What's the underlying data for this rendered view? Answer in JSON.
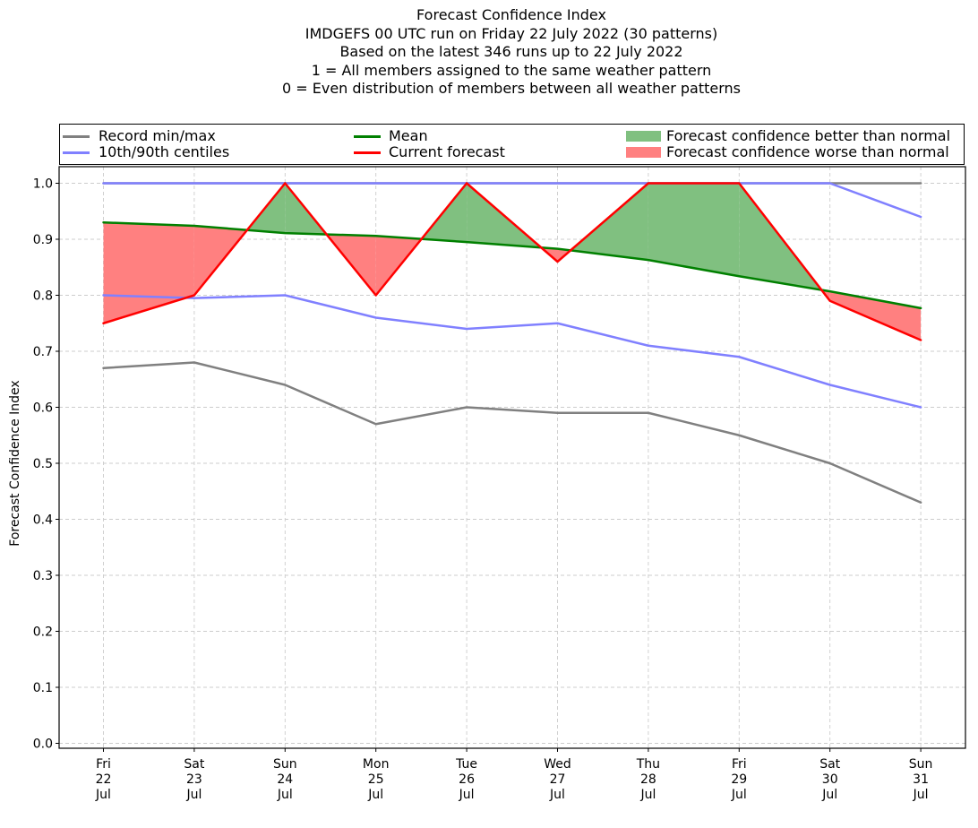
{
  "title_lines": [
    "Forecast Confidence Index",
    "IMDGEFS 00 UTC run on Friday 22 July 2022 (30 patterns)",
    "Based on the latest 346 runs up to 22 July 2022",
    "1 = All members assigned to the same weather pattern",
    "0 = Even distribution of members between all weather patterns"
  ],
  "legend": {
    "record": "Record min/max",
    "centiles": "10th/90th centiles",
    "mean": "Mean",
    "current": "Current forecast",
    "better": "Forecast confidence better than normal",
    "worse": "Forecast confidence worse than normal"
  },
  "colors": {
    "record": "#808080",
    "centiles": "#8080ff",
    "mean": "#008000",
    "current": "#ff0000",
    "better": "#80c080",
    "worse": "#ff8080"
  },
  "chart_data": {
    "type": "line",
    "ylabel": "Forecast Confidence Index",
    "ylim": [
      0.0,
      1.0
    ],
    "yticks": [
      "0.0",
      "0.1",
      "0.2",
      "0.3",
      "0.4",
      "0.5",
      "0.6",
      "0.7",
      "0.8",
      "0.9",
      "1.0"
    ],
    "grid": true,
    "legend_position": "top",
    "x": [
      [
        "Fri",
        "22",
        "Jul"
      ],
      [
        "Sat",
        "23",
        "Jul"
      ],
      [
        "Sun",
        "24",
        "Jul"
      ],
      [
        "Mon",
        "25",
        "Jul"
      ],
      [
        "Tue",
        "26",
        "Jul"
      ],
      [
        "Wed",
        "27",
        "Jul"
      ],
      [
        "Thu",
        "28",
        "Jul"
      ],
      [
        "Fri",
        "29",
        "Jul"
      ],
      [
        "Sat",
        "30",
        "Jul"
      ],
      [
        "Sun",
        "31",
        "Jul"
      ]
    ],
    "series": [
      {
        "name": "Record min/max",
        "role": "record_max",
        "values": [
          1.0,
          1.0,
          1.0,
          1.0,
          1.0,
          1.0,
          1.0,
          1.0,
          1.0,
          1.0
        ]
      },
      {
        "name": "Record min/max",
        "role": "record_min",
        "values": [
          0.67,
          0.68,
          0.64,
          0.57,
          0.6,
          0.59,
          0.59,
          0.55,
          0.5,
          0.43
        ]
      },
      {
        "name": "10th/90th centiles",
        "role": "p90",
        "values": [
          1.0,
          1.0,
          1.0,
          1.0,
          1.0,
          1.0,
          1.0,
          1.0,
          1.0,
          0.94
        ]
      },
      {
        "name": "10th/90th centiles",
        "role": "p10",
        "values": [
          0.8,
          0.795,
          0.8,
          0.76,
          0.74,
          0.75,
          0.71,
          0.69,
          0.64,
          0.6
        ]
      },
      {
        "name": "Mean",
        "role": "mean",
        "values": [
          0.93,
          0.924,
          0.911,
          0.906,
          0.895,
          0.883,
          0.863,
          0.834,
          0.807,
          0.777
        ]
      },
      {
        "name": "Current forecast",
        "role": "current",
        "values": [
          0.75,
          0.8,
          1.0,
          0.8,
          1.0,
          0.86,
          1.0,
          1.0,
          0.79,
          0.72
        ]
      }
    ]
  }
}
